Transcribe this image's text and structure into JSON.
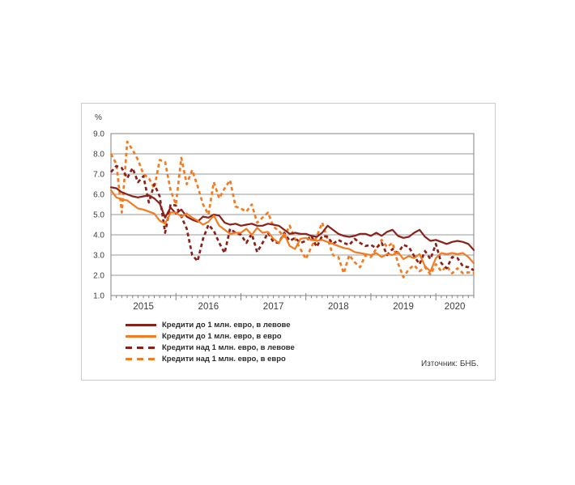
{
  "window": {
    "background": "#ffffff",
    "box_border_color": "#c6cbd0"
  },
  "chart_data": {
    "type": "line",
    "title": "",
    "ylabel": "%",
    "ylim": [
      1.0,
      9.0
    ],
    "yticks": [
      "9.0",
      "8.0",
      "7.0",
      "6.0",
      "5.0",
      "4.0",
      "3.0",
      "2.0",
      "1.0"
    ],
    "x_tick_labels": [
      "2015",
      "2016",
      "2017",
      "2018",
      "2019",
      "2020"
    ],
    "x_start": "2015-01",
    "x_end": "2020-08",
    "x_frequency": "monthly",
    "grid": "horizontal",
    "grid_color": "#9a9a9a",
    "frame_color": "#808080",
    "text_color": "#3c3c3c",
    "legend_position": "bottom-left",
    "source": "Източник: БНБ.",
    "series": [
      {
        "name": "credits-upto-1m-eur-in-bgn",
        "label": "Кредити до 1 млн. евро, в левове",
        "color": "#8A2119",
        "style": "solid",
        "values": [
          6.35,
          6.3,
          6.1,
          6.0,
          5.9,
          5.85,
          5.9,
          5.95,
          5.8,
          5.55,
          4.85,
          5.35,
          5.05,
          5.25,
          4.9,
          4.75,
          4.65,
          4.9,
          4.85,
          5.0,
          4.95,
          4.6,
          4.5,
          4.55,
          4.45,
          4.5,
          4.55,
          4.45,
          4.45,
          4.55,
          4.5,
          4.45,
          4.25,
          4.05,
          4.1,
          4.05,
          4.05,
          3.95,
          3.9,
          4.1,
          4.45,
          4.25,
          4.05,
          3.95,
          3.9,
          3.95,
          4.05,
          4.05,
          3.95,
          4.1,
          3.95,
          4.15,
          4.25,
          3.95,
          3.85,
          3.9,
          4.1,
          4.25,
          3.9,
          3.7,
          3.75,
          3.65,
          3.55,
          3.65,
          3.7,
          3.65,
          3.55,
          3.25
        ]
      },
      {
        "name": "credits-upto-1m-eur-in-eur",
        "label": "Кредити до 1 млн. евро, в евро",
        "color": "#F47B20",
        "style": "solid",
        "values": [
          6.2,
          5.85,
          5.75,
          5.7,
          5.5,
          5.3,
          5.25,
          5.15,
          5.05,
          4.7,
          4.55,
          5.1,
          5.1,
          4.9,
          5.05,
          4.85,
          4.7,
          4.5,
          4.65,
          4.95,
          4.45,
          4.25,
          4.05,
          4.1,
          4.1,
          4.3,
          4.0,
          4.35,
          4.1,
          4.15,
          3.8,
          3.6,
          4.05,
          3.45,
          3.3,
          3.8,
          3.85,
          3.75,
          3.7,
          3.75,
          3.65,
          3.55,
          3.45,
          3.35,
          3.3,
          3.15,
          3.1,
          3.05,
          3.0,
          3.1,
          2.9,
          3.05,
          3.0,
          3.15,
          2.8,
          2.95,
          2.85,
          3.05,
          2.45,
          2.2,
          2.85,
          3.1,
          3.05,
          3.1,
          3.05,
          3.1,
          2.9,
          2.6
        ]
      },
      {
        "name": "credits-over-1m-eur-in-bgn",
        "label": "Кредити над 1 млн. евро, в левове",
        "color": "#8A2119",
        "style": "dashed",
        "values": [
          7.1,
          7.4,
          7.3,
          6.8,
          7.3,
          6.6,
          6.9,
          5.6,
          6.5,
          5.9,
          4.1,
          5.5,
          5.45,
          4.9,
          4.3,
          3.0,
          2.7,
          3.8,
          4.5,
          4.2,
          3.6,
          3.1,
          4.3,
          4.1,
          4.0,
          3.6,
          4.05,
          3.15,
          3.6,
          4.1,
          3.65,
          3.6,
          4.1,
          3.7,
          3.85,
          3.6,
          3.7,
          3.95,
          3.4,
          3.95,
          3.9,
          3.55,
          3.75,
          3.6,
          3.5,
          3.8,
          3.6,
          3.45,
          3.5,
          3.35,
          3.6,
          3.0,
          3.3,
          3.1,
          3.5,
          3.4,
          2.95,
          2.55,
          3.2,
          2.8,
          3.55,
          2.6,
          2.35,
          2.9,
          2.85,
          2.45,
          2.4,
          2.25
        ]
      },
      {
        "name": "credits-over-1m-eur-in-eur",
        "label": "Кредити над 1 млн. евро, в евро",
        "color": "#F47B20",
        "style": "dashed",
        "values": [
          8.0,
          7.5,
          5.1,
          8.6,
          8.2,
          7.7,
          7.0,
          6.8,
          6.3,
          7.7,
          7.6,
          6.2,
          5.5,
          7.8,
          6.5,
          7.2,
          6.4,
          5.5,
          5.0,
          6.6,
          5.8,
          6.3,
          6.7,
          5.4,
          5.3,
          5.15,
          5.5,
          4.6,
          4.85,
          5.1,
          4.4,
          4.2,
          3.9,
          4.45,
          3.8,
          3.3,
          2.8,
          3.4,
          3.9,
          4.6,
          3.8,
          3.0,
          2.9,
          2.1,
          3.0,
          2.65,
          2.4,
          3.0,
          2.9,
          3.3,
          3.75,
          3.4,
          3.6,
          2.6,
          1.9,
          2.3,
          2.5,
          2.2,
          2.4,
          2.05,
          2.55,
          2.2,
          2.45,
          2.1,
          2.35,
          2.1,
          2.15,
          2.1
        ]
      }
    ]
  }
}
